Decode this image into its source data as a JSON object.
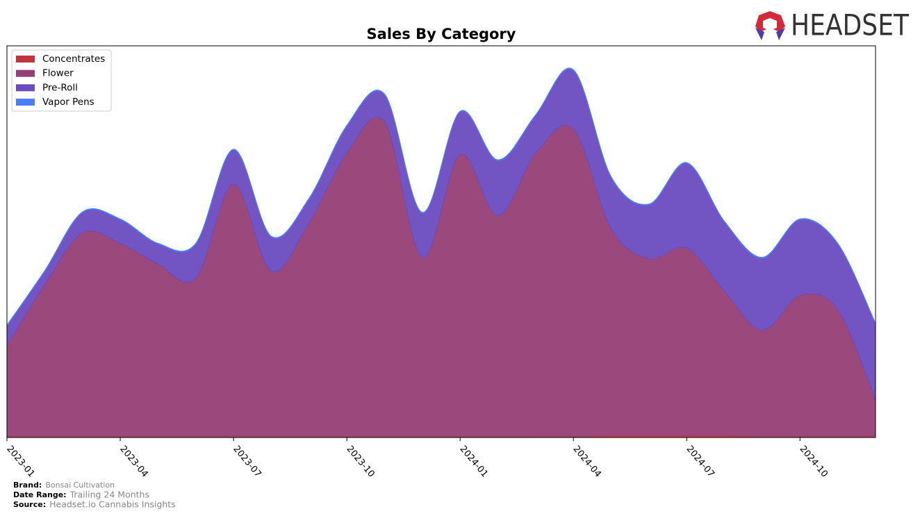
{
  "chart_data": {
    "type": "stacked-area",
    "title": "Sales By Category",
    "x": [
      "2023-01",
      "2023-02",
      "2023-03",
      "2023-04",
      "2023-05",
      "2023-06",
      "2023-07",
      "2023-08",
      "2023-09",
      "2023-10",
      "2023-11",
      "2023-12",
      "2024-01",
      "2024-02",
      "2024-03",
      "2024-04",
      "2024-05",
      "2024-06",
      "2024-07",
      "2024-08",
      "2024-09",
      "2024-10",
      "2024-11",
      "2024-12"
    ],
    "xticks": [
      "2023-01",
      "2023-04",
      "2023-07",
      "2023-10",
      "2024-01",
      "2024-04",
      "2024-07",
      "2024-10"
    ],
    "ylim": [
      0,
      100
    ],
    "legend": "upper left",
    "series": [
      {
        "name": "Concentrates",
        "color": "#c0353c",
        "values": [
          0.3,
          0.3,
          0.3,
          0.3,
          0.3,
          0.3,
          0.3,
          0.3,
          0.3,
          0.3,
          0.3,
          0.3,
          0.3,
          0.3,
          0.3,
          0.3,
          0.5,
          0.5,
          0.5,
          0.5,
          0.3,
          0.3,
          0.3,
          0.3
        ]
      },
      {
        "name": "Flower",
        "color": "#963f76",
        "values": [
          23.2,
          38.7,
          52.0,
          49.3,
          44.0,
          40.4,
          64.4,
          42.2,
          54.6,
          72.3,
          80.3,
          45.7,
          72.0,
          56.4,
          72.3,
          78.5,
          52.8,
          45.2,
          47.9,
          36.9,
          27.1,
          36.0,
          32.4,
          9.4
        ]
      },
      {
        "name": "Pre-Roll",
        "color": "#6a4cc0",
        "values": [
          5.0,
          3.4,
          5.1,
          6.0,
          5.1,
          8.7,
          8.7,
          8.7,
          6.0,
          6.9,
          6.9,
          11.3,
          10.8,
          14.0,
          9.6,
          14.9,
          13.1,
          13.7,
          21.6,
          17.6,
          18.4,
          19.3,
          16.7,
          19.3
        ]
      },
      {
        "name": "Vapor Pens",
        "color": "#4a7cfc",
        "values": [
          0.2,
          0.2,
          0.2,
          0.2,
          0.2,
          0.2,
          0.2,
          0.2,
          0.2,
          0.2,
          0.2,
          0.2,
          0.2,
          0.2,
          0.2,
          0.2,
          0.2,
          0.2,
          0.2,
          0.2,
          0.2,
          0.2,
          0.2,
          0.2
        ]
      }
    ]
  },
  "logo": "HEADSET",
  "footer": [
    {
      "label": "Brand:",
      "value": "Bonsai Cultivation"
    },
    {
      "label": "Date Range:",
      "value": "Trailing 24 Months"
    },
    {
      "label": "Source:",
      "value": "Headset.io Cannabis Insights"
    }
  ]
}
